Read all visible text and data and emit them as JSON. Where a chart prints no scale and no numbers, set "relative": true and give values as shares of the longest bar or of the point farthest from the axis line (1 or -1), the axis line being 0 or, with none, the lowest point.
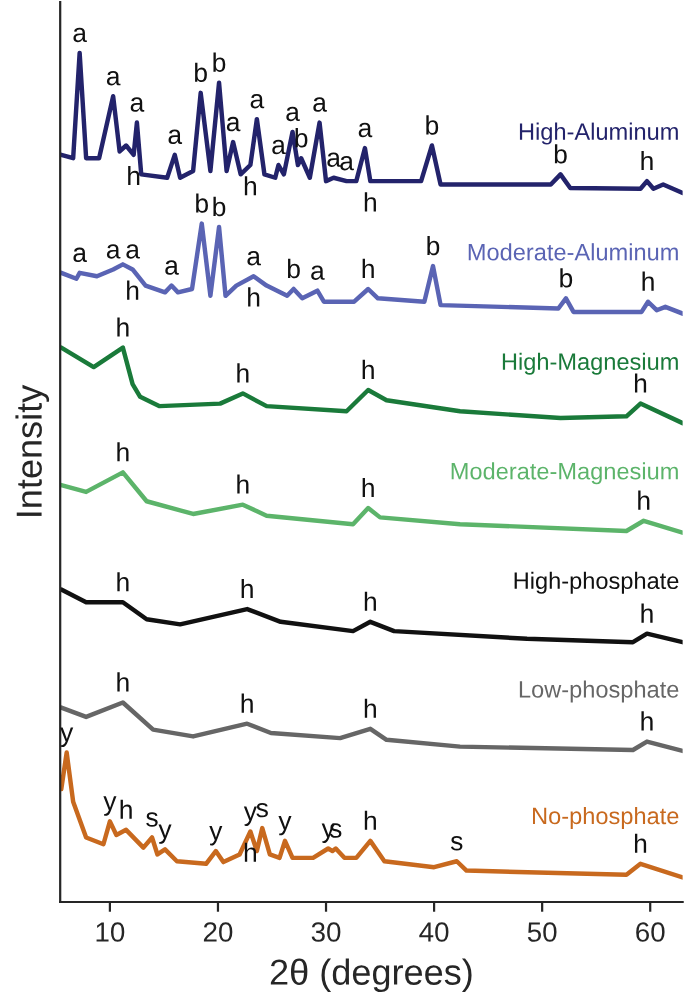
{
  "chart_data": {
    "type": "line",
    "relative": true,
    "xlabel": "2θ (degrees)",
    "ylabel": "Intensity",
    "xlim": [
      5.4,
      63.0
    ],
    "xticks": [
      10,
      20,
      30,
      40,
      50,
      60
    ],
    "grid": false,
    "series": [
      {
        "name": "High-Aluminum",
        "color": "#23236b",
        "x": [
          5.5,
          6.6,
          7.2,
          7.8,
          9.0,
          10.3,
          10.9,
          11.5,
          12.2,
          12.5,
          12.9,
          15.3,
          16.0,
          16.5,
          17.7,
          18.4,
          19.3,
          20.1,
          20.8,
          21.4,
          22.1,
          23.0,
          23.6,
          24.3,
          25.3,
          25.6,
          26.1,
          26.9,
          27.4,
          27.7,
          28.5,
          29.4,
          30.0,
          30.7,
          31.9,
          32.8,
          33.6,
          34.1,
          38.8,
          39.8,
          40.6,
          50.8,
          51.7,
          52.6,
          59.1,
          59.7,
          60.3,
          61.2,
          63.0
        ],
        "values": [
          0.88,
          0.876,
          1.0,
          0.876,
          0.876,
          0.949,
          0.884,
          0.891,
          0.88,
          0.918,
          0.857,
          0.853,
          0.88,
          0.853,
          0.861,
          0.953,
          0.861,
          0.965,
          0.861,
          0.895,
          0.857,
          0.868,
          0.922,
          0.857,
          0.853,
          0.868,
          0.857,
          0.907,
          0.868,
          0.876,
          0.853,
          0.918,
          0.849,
          0.853,
          0.849,
          0.849,
          0.888,
          0.849,
          0.849,
          0.891,
          0.845,
          0.845,
          0.857,
          0.841,
          0.84,
          0.849,
          0.84,
          0.845,
          0.835
        ]
      },
      {
        "name": "Moderate-Aluminum",
        "color": "#5a64b4",
        "x": [
          5.5,
          6.9,
          7.2,
          8.8,
          10.3,
          11.2,
          12.1,
          13.3,
          15.1,
          15.7,
          16.3,
          17.6,
          18.5,
          19.3,
          20.1,
          20.7,
          21.7,
          23.3,
          24.5,
          26.4,
          27.0,
          27.8,
          29.2,
          29.8,
          32.6,
          33.9,
          34.8,
          39.1,
          39.9,
          40.6,
          51.5,
          52.2,
          52.9,
          59.2,
          59.8,
          60.6,
          61.4,
          63.0
        ],
        "values": [
          0.741,
          0.734,
          0.741,
          0.737,
          0.745,
          0.751,
          0.745,
          0.726,
          0.718,
          0.726,
          0.718,
          0.722,
          0.799,
          0.714,
          0.795,
          0.714,
          0.726,
          0.737,
          0.726,
          0.714,
          0.722,
          0.711,
          0.72,
          0.707,
          0.707,
          0.722,
          0.711,
          0.707,
          0.749,
          0.703,
          0.699,
          0.711,
          0.695,
          0.695,
          0.707,
          0.697,
          0.701,
          0.693
        ]
      },
      {
        "name": "High-Magnesium",
        "color": "#1a7a3a",
        "x": [
          5.5,
          8.5,
          11.2,
          12.1,
          12.8,
          14.6,
          20.2,
          22.3,
          24.5,
          31.9,
          33.9,
          35.6,
          42.4,
          51.7,
          57.8,
          59.1,
          63.0
        ],
        "values": [
          0.653,
          0.63,
          0.653,
          0.61,
          0.595,
          0.584,
          0.587,
          0.599,
          0.584,
          0.578,
          0.603,
          0.591,
          0.578,
          0.57,
          0.572,
          0.587,
          0.564
        ]
      },
      {
        "name": "Moderate-Magnesium",
        "color": "#5cb46a",
        "x": [
          5.5,
          7.8,
          11.2,
          13.4,
          17.7,
          22.3,
          24.5,
          32.5,
          33.9,
          35.0,
          42.4,
          57.8,
          59.4,
          63.0
        ],
        "values": [
          0.491,
          0.483,
          0.506,
          0.472,
          0.457,
          0.468,
          0.455,
          0.445,
          0.464,
          0.453,
          0.445,
          0.437,
          0.449,
          0.435
        ]
      },
      {
        "name": "High-phosphate",
        "color": "#111111",
        "x": [
          5.5,
          7.8,
          11.2,
          13.4,
          16.5,
          22.7,
          25.8,
          32.5,
          34.1,
          36.3,
          48.6,
          58.4,
          59.7,
          63.0
        ],
        "values": [
          0.368,
          0.353,
          0.353,
          0.333,
          0.327,
          0.345,
          0.33,
          0.319,
          0.33,
          0.319,
          0.31,
          0.306,
          0.316,
          0.306
        ]
      },
      {
        "name": "Low-phosphate",
        "color": "#666666",
        "x": [
          5.5,
          7.8,
          11.2,
          14.0,
          17.7,
          22.7,
          24.9,
          31.3,
          34.1,
          35.6,
          42.4,
          58.4,
          59.7,
          63.0
        ],
        "values": [
          0.229,
          0.218,
          0.235,
          0.203,
          0.195,
          0.21,
          0.199,
          0.193,
          0.204,
          0.191,
          0.183,
          0.179,
          0.189,
          0.178
        ]
      },
      {
        "name": "No-phosphate",
        "color": "#c8691e",
        "x": [
          5.5,
          6.0,
          6.6,
          7.8,
          9.4,
          10.0,
          10.6,
          11.5,
          13.1,
          13.9,
          14.4,
          15.1,
          16.2,
          18.9,
          19.8,
          20.5,
          22.0,
          23.0,
          23.6,
          24.1,
          24.8,
          25.7,
          26.2,
          26.9,
          28.8,
          30.2,
          30.6,
          30.9,
          31.7,
          32.8,
          34.1,
          35.4,
          40.0,
          42.1,
          43.0,
          57.8,
          59.1,
          63.0
        ],
        "values": [
          0.133,
          0.176,
          0.118,
          0.076,
          0.068,
          0.095,
          0.079,
          0.085,
          0.064,
          0.076,
          0.056,
          0.062,
          0.048,
          0.045,
          0.06,
          0.047,
          0.056,
          0.083,
          0.06,
          0.087,
          0.056,
          0.052,
          0.072,
          0.052,
          0.052,
          0.063,
          0.06,
          0.063,
          0.052,
          0.052,
          0.072,
          0.048,
          0.041,
          0.048,
          0.037,
          0.032,
          0.045,
          0.029
        ]
      }
    ],
    "annotations": [
      {
        "text": "a",
        "x": 7.2,
        "y": 1.0
      },
      {
        "text": "a",
        "x": 10.3,
        "y": 0.949
      },
      {
        "text": "a",
        "x": 12.5,
        "y": 0.918
      },
      {
        "text": "h",
        "x": 12.2,
        "y": 0.88
      },
      {
        "text": "a",
        "x": 16.0,
        "y": 0.88
      },
      {
        "text": "b",
        "x": 18.4,
        "y": 0.953
      },
      {
        "text": "b",
        "x": 20.1,
        "y": 0.965
      },
      {
        "text": "a",
        "x": 21.4,
        "y": 0.895
      },
      {
        "text": "a",
        "x": 23.6,
        "y": 0.922
      },
      {
        "text": "h",
        "x": 23.0,
        "y": 0.868
      },
      {
        "text": "a",
        "x": 25.6,
        "y": 0.868
      },
      {
        "text": "a",
        "x": 26.9,
        "y": 0.907
      },
      {
        "text": "b",
        "x": 27.7,
        "y": 0.876
      },
      {
        "text": "a",
        "x": 29.4,
        "y": 0.918
      },
      {
        "text": "a",
        "x": 30.7,
        "y": 0.853
      },
      {
        "text": "a",
        "x": 31.9,
        "y": 0.849
      },
      {
        "text": "a",
        "x": 33.6,
        "y": 0.888
      },
      {
        "text": "h",
        "x": 34.1,
        "y": 0.849
      },
      {
        "text": "b",
        "x": 39.8,
        "y": 0.891
      },
      {
        "text": "b",
        "x": 51.7,
        "y": 0.857
      },
      {
        "text": "h",
        "x": 59.7,
        "y": 0.849
      },
      {
        "text": "a",
        "x": 7.2,
        "y": 0.741
      },
      {
        "text": "a",
        "x": 10.3,
        "y": 0.745
      },
      {
        "text": "a",
        "x": 12.1,
        "y": 0.745
      },
      {
        "text": "h",
        "x": 12.1,
        "y": 0.745
      },
      {
        "text": "a",
        "x": 15.7,
        "y": 0.726
      },
      {
        "text": "b",
        "x": 18.5,
        "y": 0.799
      },
      {
        "text": "b",
        "x": 20.1,
        "y": 0.795
      },
      {
        "text": "a",
        "x": 23.3,
        "y": 0.737
      },
      {
        "text": "h",
        "x": 23.3,
        "y": 0.737
      },
      {
        "text": "b",
        "x": 27.0,
        "y": 0.722
      },
      {
        "text": "a",
        "x": 29.2,
        "y": 0.72
      },
      {
        "text": "h",
        "x": 33.9,
        "y": 0.722
      },
      {
        "text": "b",
        "x": 39.9,
        "y": 0.749
      },
      {
        "text": "b",
        "x": 52.2,
        "y": 0.711
      },
      {
        "text": "h",
        "x": 59.8,
        "y": 0.707
      },
      {
        "text": "h",
        "x": 11.2,
        "y": 0.653
      },
      {
        "text": "h",
        "x": 22.3,
        "y": 0.599
      },
      {
        "text": "h",
        "x": 33.9,
        "y": 0.603
      },
      {
        "text": "h",
        "x": 59.1,
        "y": 0.587
      },
      {
        "text": "h",
        "x": 11.2,
        "y": 0.506
      },
      {
        "text": "h",
        "x": 22.3,
        "y": 0.468
      },
      {
        "text": "h",
        "x": 33.9,
        "y": 0.464
      },
      {
        "text": "h",
        "x": 59.4,
        "y": 0.449
      },
      {
        "text": "h",
        "x": 11.2,
        "y": 0.353
      },
      {
        "text": "h",
        "x": 22.7,
        "y": 0.345
      },
      {
        "text": "h",
        "x": 34.1,
        "y": 0.33
      },
      {
        "text": "h",
        "x": 59.7,
        "y": 0.316
      },
      {
        "text": "h",
        "x": 11.2,
        "y": 0.235
      },
      {
        "text": "h",
        "x": 22.7,
        "y": 0.21
      },
      {
        "text": "h",
        "x": 34.1,
        "y": 0.204
      },
      {
        "text": "h",
        "x": 59.7,
        "y": 0.189
      },
      {
        "text": "y",
        "x": 6.0,
        "y": 0.176
      },
      {
        "text": "y",
        "x": 10.0,
        "y": 0.095
      },
      {
        "text": "h",
        "x": 11.5,
        "y": 0.085
      },
      {
        "text": "s",
        "x": 13.9,
        "y": 0.076
      },
      {
        "text": "y",
        "x": 15.1,
        "y": 0.062
      },
      {
        "text": "y",
        "x": 19.8,
        "y": 0.06
      },
      {
        "text": "y",
        "x": 23.0,
        "y": 0.083
      },
      {
        "text": "s",
        "x": 24.1,
        "y": 0.087
      },
      {
        "text": "h",
        "x": 23.0,
        "y": 0.083
      },
      {
        "text": "y",
        "x": 26.2,
        "y": 0.072
      },
      {
        "text": "y",
        "x": 30.2,
        "y": 0.063
      },
      {
        "text": "s",
        "x": 30.9,
        "y": 0.063
      },
      {
        "text": "h",
        "x": 34.1,
        "y": 0.072
      },
      {
        "text": "s",
        "x": 42.1,
        "y": 0.048
      },
      {
        "text": "h",
        "x": 59.1,
        "y": 0.045
      }
    ]
  }
}
